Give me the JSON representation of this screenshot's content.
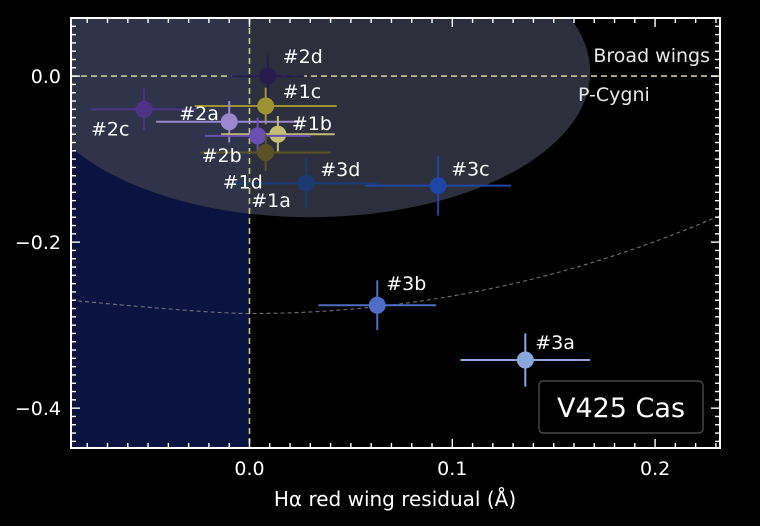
{
  "chart_data": {
    "type": "scatter",
    "title": "",
    "xlabel": "Hα red wing residual (Å)",
    "ylabel": "",
    "xlim": [
      -0.088,
      0.232
    ],
    "ylim": [
      -0.448,
      0.07
    ],
    "x_ticks": [
      0.0,
      0.1,
      0.2
    ],
    "x_tick_labels": [
      "0.0",
      "0.1",
      "0.2"
    ],
    "y_ticks": [
      0.0,
      -0.2,
      -0.4
    ],
    "y_tick_labels": [
      "0.0",
      "−0.2",
      "−0.4"
    ],
    "grid": false,
    "legend": "none",
    "annotations": {
      "star_label": "V425 Cas",
      "region_broad_wings": "Broad wings",
      "region_p_cygni": "P-Cygni"
    },
    "colors": {
      "background": "#000000",
      "axes": "#ffffff",
      "left_region": "#0b1340",
      "ellipse_region": "#3a3d4d",
      "reference_lines": "#c9c98a",
      "dashed_curve": "#8a8a8a"
    },
    "points": [
      {
        "label": "#2d",
        "x": 0.009,
        "y": 0.0,
        "xerr": 0.018,
        "yerr": 0.025,
        "color": "#251b4d"
      },
      {
        "label": "#1c",
        "x": 0.008,
        "y": -0.036,
        "xerr": 0.035,
        "yerr": 0.022,
        "color": "#9d9333"
      },
      {
        "label": "#2c",
        "x": -0.052,
        "y": -0.04,
        "xerr": 0.026,
        "yerr": 0.025,
        "color": "#4b3486"
      },
      {
        "label": "#2a",
        "x": -0.01,
        "y": -0.055,
        "xerr": 0.036,
        "yerr": 0.025,
        "color": "#9c88cf"
      },
      {
        "label": "#1b",
        "x": 0.014,
        "y": -0.07,
        "xerr": 0.028,
        "yerr": 0.022,
        "color": "#c4bf74"
      },
      {
        "label": "#2b",
        "x": 0.004,
        "y": -0.072,
        "xerr": 0.026,
        "yerr": 0.022,
        "color": "#6a50b0"
      },
      {
        "label": "#1d",
        "x": 0.008,
        "y": -0.092,
        "xerr": 0.032,
        "yerr": 0.022,
        "color": "#5a5424"
      },
      {
        "label": "#1a",
        "x": 0.028,
        "y": -0.129,
        "xerr": 0.036,
        "yerr": 0.03,
        "color": "#1d3a70"
      },
      {
        "label": "#3d",
        "x": 0.028,
        "y": -0.129,
        "xerr": 0.036,
        "yerr": 0.03,
        "color": "#1d3a70"
      },
      {
        "label": "#3c",
        "x": 0.093,
        "y": -0.132,
        "xerr": 0.036,
        "yerr": 0.036,
        "color": "#1f45a5"
      },
      {
        "label": "#3b",
        "x": 0.063,
        "y": -0.276,
        "xerr": 0.029,
        "yerr": 0.03,
        "color": "#4f6cc6"
      },
      {
        "label": "#3a",
        "x": 0.136,
        "y": -0.342,
        "xerr": 0.032,
        "yerr": 0.032,
        "color": "#8aa8de"
      }
    ]
  }
}
